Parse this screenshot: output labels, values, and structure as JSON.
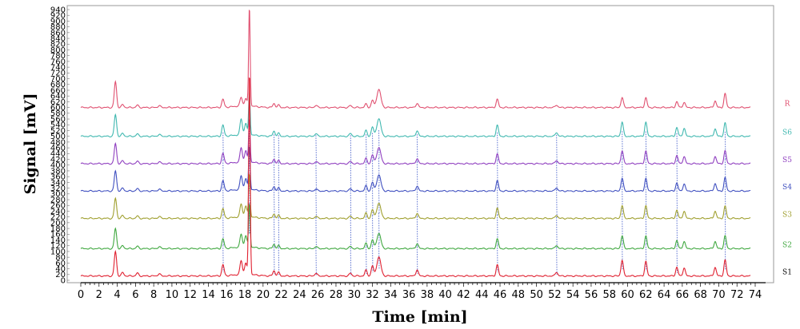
{
  "chart_data": {
    "type": "line",
    "title": "",
    "xlabel": "Time [min]",
    "ylabel": "Signal [mV]",
    "xlim": [
      0,
      74
    ],
    "ylim": [
      0,
      940
    ],
    "x_ticks": [
      0,
      2,
      4,
      6,
      8,
      10,
      12,
      14,
      16,
      18,
      20,
      22,
      24,
      26,
      28,
      30,
      32,
      34,
      36,
      38,
      40,
      42,
      44,
      46,
      48,
      50,
      52,
      54,
      56,
      58,
      60,
      62,
      64,
      66,
      68,
      70,
      72,
      74
    ],
    "y_ticks": [
      0,
      20,
      40,
      60,
      80,
      100,
      120,
      140,
      160,
      180,
      200,
      220,
      240,
      260,
      280,
      300,
      320,
      340,
      360,
      380,
      400,
      420,
      440,
      460,
      480,
      500,
      520,
      540,
      560,
      580,
      600,
      620,
      640,
      660,
      680,
      700,
      720,
      740,
      760,
      780,
      800,
      820,
      840,
      860,
      880,
      900,
      920,
      940
    ],
    "grid": false,
    "legend": "right (labels beside each trace)",
    "peak_times_min": [
      3.8,
      4.6,
      6.2,
      8.6,
      15.6,
      17.6,
      18.1,
      18.5,
      21.2,
      21.7,
      25.8,
      29.6,
      31.3,
      32.0,
      32.7,
      36.9,
      45.7,
      52.2,
      59.4,
      62.0,
      65.4,
      66.2,
      69.6,
      70.7
    ],
    "series": [
      {
        "name": "R",
        "color": "#e05070",
        "baseline": 600,
        "peak_heights": [
          90,
          10,
          8,
          7,
          28,
          30,
          26,
          340,
          14,
          8,
          8,
          7,
          12,
          25,
          62,
          15,
          28,
          9,
          35,
          33,
          20,
          18,
          23,
          48
        ]
      },
      {
        "name": "S6",
        "color": "#40b8b0",
        "baseline": 500,
        "peak_heights": [
          75,
          10,
          8,
          7,
          38,
          55,
          40,
          150,
          18,
          10,
          10,
          10,
          20,
          32,
          60,
          20,
          38,
          14,
          50,
          48,
          30,
          28,
          26,
          46
        ]
      },
      {
        "name": "S5",
        "color": "#9040c0",
        "baseline": 405,
        "peak_heights": [
          70,
          10,
          8,
          7,
          35,
          50,
          40,
          150,
          15,
          10,
          8,
          8,
          18,
          30,
          55,
          18,
          33,
          12,
          45,
          43,
          28,
          25,
          25,
          44
        ]
      },
      {
        "name": "S4",
        "color": "#4050c0",
        "baseline": 310,
        "peak_heights": [
          70,
          10,
          8,
          7,
          35,
          48,
          38,
          150,
          15,
          10,
          8,
          8,
          18,
          30,
          55,
          18,
          35,
          12,
          45,
          43,
          28,
          25,
          26,
          46
        ]
      },
      {
        "name": "S3",
        "color": "#a0a030",
        "baseline": 215,
        "peak_heights": [
          70,
          10,
          8,
          7,
          33,
          45,
          38,
          150,
          15,
          10,
          8,
          8,
          18,
          30,
          52,
          18,
          35,
          12,
          45,
          43,
          28,
          25,
          25,
          42
        ]
      },
      {
        "name": "S2",
        "color": "#40a840",
        "baseline": 110,
        "peak_heights": [
          70,
          10,
          8,
          7,
          33,
          45,
          40,
          150,
          15,
          10,
          8,
          8,
          18,
          30,
          52,
          18,
          33,
          12,
          45,
          43,
          28,
          25,
          25,
          44
        ]
      },
      {
        "name": "S1",
        "color": "#e02030",
        "baseline": 15,
        "peak_heights": [
          85,
          12,
          10,
          8,
          38,
          48,
          40,
          700,
          18,
          12,
          10,
          10,
          20,
          35,
          65,
          22,
          38,
          14,
          55,
          50,
          30,
          28,
          30,
          55
        ]
      }
    ],
    "alignment_lines": {
      "color": "#5a70d0",
      "style": "dotted",
      "at_peak_times_min": [
        15.6,
        18.5,
        21.2,
        21.7,
        25.8,
        29.6,
        31.3,
        32.0,
        32.7,
        36.9,
        45.7,
        52.2,
        59.4,
        62.0,
        65.4,
        70.7
      ]
    }
  }
}
